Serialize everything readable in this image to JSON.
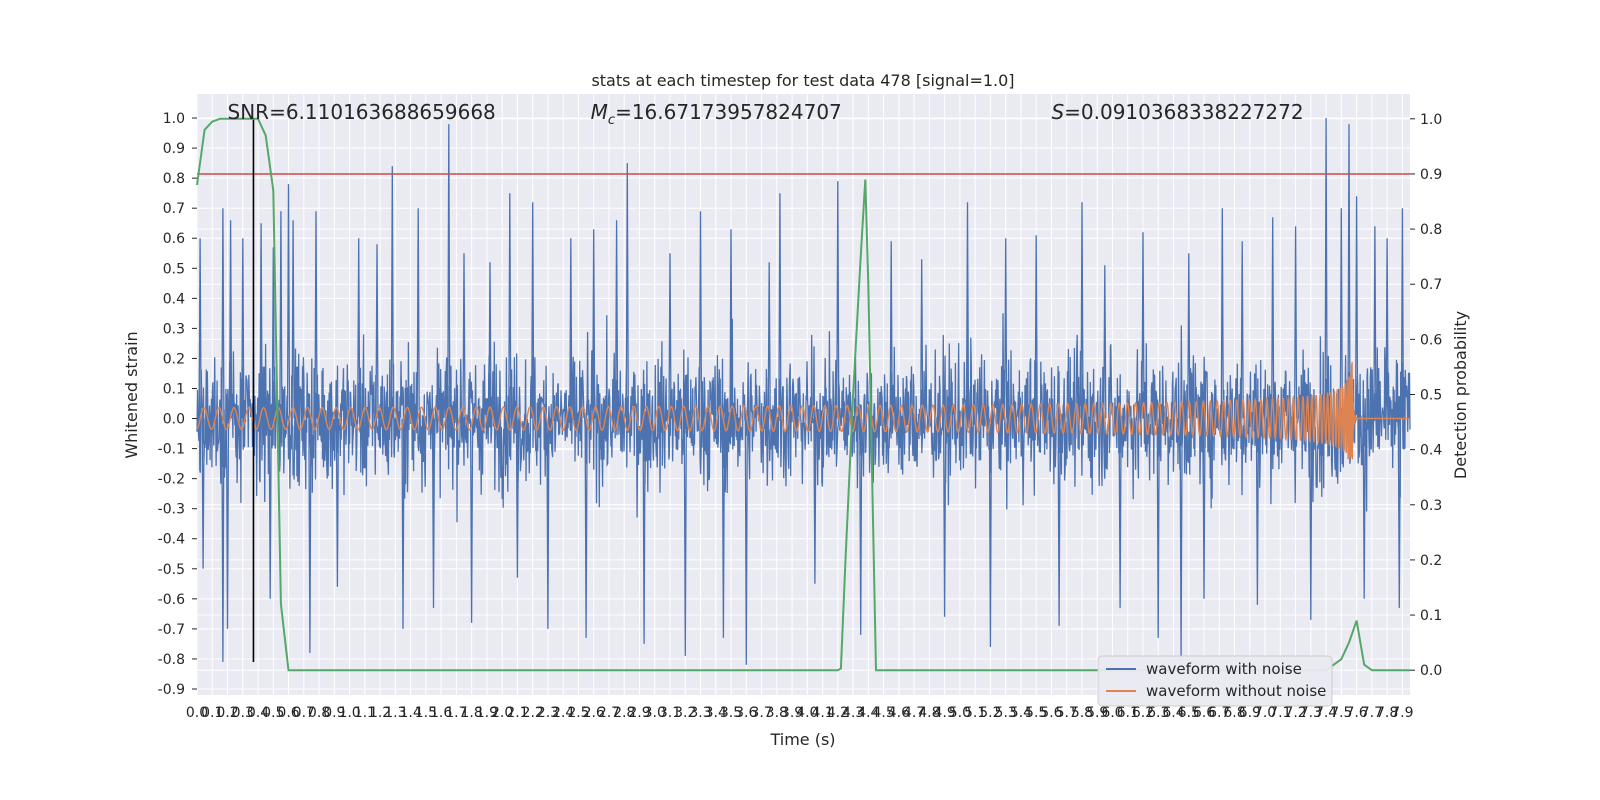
{
  "chart_data": {
    "type": "line",
    "title": "stats at each timestep for test data 478 [signal=1.0]",
    "xlabel": "Time (s)",
    "ylabel_left": "Whitened strain",
    "ylabel_right": "Detection probability",
    "xlim": [
      0.0,
      7.95
    ],
    "ylim_left": [
      -0.92,
      1.08
    ],
    "ylim_right": [
      -0.045,
      1.045
    ],
    "x_ticks": [
      0.0,
      0.1,
      0.2,
      0.3,
      0.4,
      0.5,
      0.6,
      0.7,
      0.8,
      0.9,
      1.0,
      1.1,
      1.2,
      1.3,
      1.4,
      1.5,
      1.6,
      1.7,
      1.8,
      1.9,
      2.0,
      2.1,
      2.2,
      2.3,
      2.4,
      2.5,
      2.6,
      2.7,
      2.8,
      2.9,
      3.0,
      3.1,
      3.2,
      3.3,
      3.4,
      3.5,
      3.6,
      3.7,
      3.8,
      3.9,
      4.0,
      4.1,
      4.2,
      4.3,
      4.4,
      4.5,
      4.6,
      4.7,
      4.8,
      4.9,
      5.0,
      5.1,
      5.2,
      5.3,
      5.4,
      5.5,
      5.6,
      5.7,
      5.8,
      5.9,
      6.0,
      6.1,
      6.2,
      6.3,
      6.4,
      6.5,
      6.6,
      6.7,
      6.8,
      6.9,
      7.0,
      7.1,
      7.2,
      7.3,
      7.4,
      7.5,
      7.6,
      7.7,
      7.8,
      7.9
    ],
    "y_ticks_left": [
      -0.9,
      -0.8,
      -0.7,
      -0.6,
      -0.5,
      -0.4,
      -0.3,
      -0.2,
      -0.1,
      0.0,
      0.1,
      0.2,
      0.3,
      0.4,
      0.5,
      0.6,
      0.7,
      0.8,
      0.9,
      1.0
    ],
    "y_ticks_right": [
      0.0,
      0.1,
      0.2,
      0.3,
      0.4,
      0.5,
      0.6,
      0.7,
      0.8,
      0.9,
      1.0
    ],
    "annotations": [
      {
        "text": "SNR=6.110163688659668",
        "x": 0.2,
        "y": 1.02
      },
      {
        "text": "=16.67173957824707",
        "symbol": "M",
        "subscript": "c",
        "x": 2.58,
        "y": 1.02
      },
      {
        "text": "=0.0910368338227272",
        "symbol": "S",
        "x": 5.6,
        "y": 1.02
      }
    ],
    "hlines": [
      {
        "y_right": 0.9,
        "color": "#c44e52"
      }
    ],
    "vlines": [
      {
        "x": 0.37,
        "y_left_range": [
          -0.81,
          1.0
        ],
        "color": "#000000"
      }
    ],
    "series": [
      {
        "name": "waveform with noise",
        "color": "#4c72b0",
        "axis": "left",
        "kind": "noise",
        "amplitude": 0.28,
        "peaks": [
          [
            0.02,
            0.6
          ],
          [
            0.04,
            -0.5
          ],
          [
            0.17,
            -0.81
          ],
          [
            0.2,
            -0.7
          ],
          [
            0.17,
            0.7
          ],
          [
            0.22,
            0.66
          ],
          [
            0.3,
            0.6
          ],
          [
            0.42,
            0.65
          ],
          [
            0.48,
            -0.6
          ],
          [
            0.5,
            0.57
          ],
          [
            0.55,
            0.69
          ],
          [
            0.6,
            0.78
          ],
          [
            0.63,
            0.66
          ],
          [
            0.74,
            -0.78
          ],
          [
            0.78,
            0.69
          ],
          [
            0.92,
            -0.56
          ],
          [
            1.06,
            0.6
          ],
          [
            1.18,
            0.58
          ],
          [
            1.28,
            0.84
          ],
          [
            1.35,
            -0.7
          ],
          [
            1.45,
            0.7
          ],
          [
            1.55,
            -0.63
          ],
          [
            1.65,
            0.98
          ],
          [
            1.75,
            0.55
          ],
          [
            1.8,
            -0.68
          ],
          [
            1.92,
            0.52
          ],
          [
            2.05,
            0.75
          ],
          [
            2.1,
            -0.53
          ],
          [
            2.2,
            0.72
          ],
          [
            2.3,
            -0.7
          ],
          [
            2.45,
            0.6
          ],
          [
            2.55,
            -0.73
          ],
          [
            2.6,
            0.63
          ],
          [
            2.75,
            0.66
          ],
          [
            2.82,
            0.85
          ],
          [
            2.93,
            -0.75
          ],
          [
            3.1,
            0.55
          ],
          [
            3.2,
            -0.79
          ],
          [
            3.3,
            0.69
          ],
          [
            3.45,
            -0.73
          ],
          [
            3.5,
            0.63
          ],
          [
            3.6,
            -0.82
          ],
          [
            3.75,
            0.52
          ],
          [
            3.82,
            0.75
          ],
          [
            4.05,
            -0.55
          ],
          [
            4.2,
            0.79
          ],
          [
            4.35,
            -0.72
          ],
          [
            4.55,
            0.59
          ],
          [
            4.75,
            0.53
          ],
          [
            4.9,
            -0.66
          ],
          [
            5.05,
            0.72
          ],
          [
            5.2,
            -0.76
          ],
          [
            5.3,
            0.6
          ],
          [
            5.5,
            0.61
          ],
          [
            5.65,
            -0.69
          ],
          [
            5.8,
            0.72
          ],
          [
            5.95,
            0.51
          ],
          [
            6.05,
            -0.63
          ],
          [
            6.2,
            0.62
          ],
          [
            6.3,
            -0.73
          ],
          [
            6.45,
            -0.8
          ],
          [
            6.5,
            0.55
          ],
          [
            6.6,
            -0.6
          ],
          [
            6.72,
            0.7
          ],
          [
            6.85,
            0.59
          ],
          [
            6.95,
            -0.62
          ],
          [
            7.05,
            0.67
          ],
          [
            7.2,
            0.64
          ],
          [
            7.3,
            -0.67
          ],
          [
            7.4,
            1.0
          ],
          [
            7.5,
            0.7
          ],
          [
            7.55,
            0.98
          ],
          [
            7.6,
            0.74
          ],
          [
            7.65,
            -0.6
          ],
          [
            7.72,
            0.64
          ],
          [
            7.8,
            0.6
          ],
          [
            7.9,
            0.7
          ],
          [
            7.88,
            -0.63
          ]
        ]
      },
      {
        "name": "waveform without noise",
        "color": "#dd8452",
        "axis": "left",
        "kind": "chirp",
        "t_merger": 7.57,
        "peak_amplitude": 0.22
      },
      {
        "name": "",
        "color": "#55a868",
        "axis": "right",
        "kind": "line",
        "x": [
          0.0,
          0.05,
          0.1,
          0.15,
          0.2,
          0.25,
          0.3,
          0.35,
          0.4,
          0.45,
          0.5,
          0.55,
          0.6,
          0.7,
          0.8,
          1.0,
          1.5,
          2.0,
          2.5,
          3.0,
          3.5,
          4.0,
          4.2,
          4.22,
          4.25,
          4.3,
          4.35,
          4.38,
          4.4,
          4.45,
          4.5,
          4.6,
          5.0,
          5.5,
          6.0,
          6.5,
          7.0,
          7.2,
          7.35,
          7.4,
          7.45,
          7.5,
          7.55,
          7.6,
          7.65,
          7.7,
          7.95
        ],
        "y": [
          0.88,
          0.98,
          0.995,
          1.0,
          1.0,
          1.0,
          1.0,
          1.0,
          1.0,
          0.97,
          0.87,
          0.12,
          0.0,
          0.0,
          0.0,
          0.0,
          0.0,
          0.0,
          0.0,
          0.0,
          0.0,
          0.0,
          0.0,
          0.003,
          0.2,
          0.5,
          0.75,
          0.89,
          0.7,
          0.0,
          0.0,
          0.0,
          0.0,
          0.0,
          0.0,
          0.0,
          0.0,
          0.0,
          0.0,
          0.0,
          0.01,
          0.02,
          0.05,
          0.09,
          0.01,
          0.0,
          0.0
        ]
      }
    ],
    "legend": {
      "placement": "lower-right",
      "entries": [
        {
          "label": "waveform with noise",
          "color": "#4c72b0"
        },
        {
          "label": "waveform without noise",
          "color": "#dd8452"
        }
      ]
    },
    "background": "#eaeaf2",
    "grid": true
  }
}
